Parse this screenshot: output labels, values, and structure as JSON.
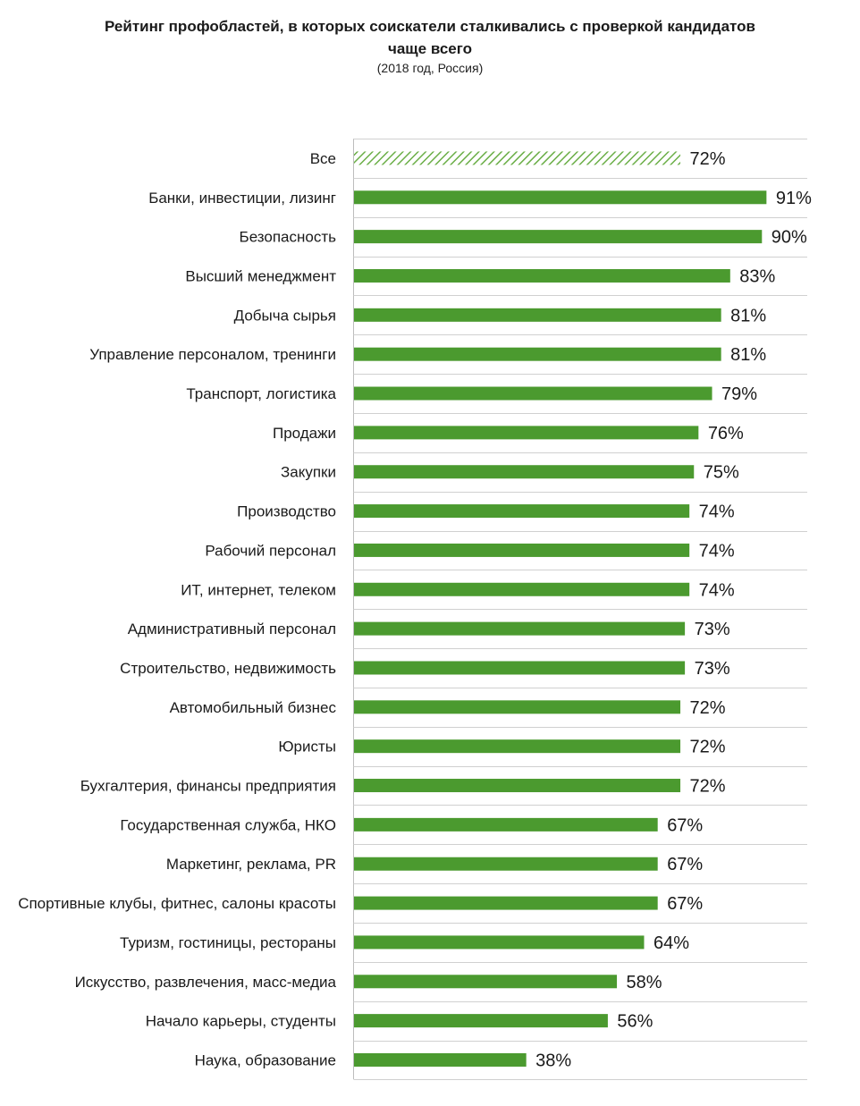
{
  "title_line1": "Рейтинг профобластей, в которых соискатели сталкивались с проверкой кандидатов",
  "title_line2": "чаще всего",
  "subtitle": "(2018 год, Россия)",
  "colors": {
    "bar": "#4b9a2f",
    "hatch": "#6aae46",
    "grid": "#d0d0d0"
  },
  "chart_data": {
    "type": "bar",
    "orientation": "horizontal",
    "title": "Рейтинг профобластей, в которых соискатели сталкивались с проверкой кандидатов чаще всего",
    "subtitle": "(2018 год, Россия)",
    "unit": "%",
    "xlim": [
      0,
      100
    ],
    "grid": true,
    "categories": [
      "Все",
      "Банки, инвестиции, лизинг",
      "Безопасность",
      "Высший менеджмент",
      "Добыча сырья",
      "Управление персоналом, тренинги",
      "Транспорт, логистика",
      "Продажи",
      "Закупки",
      "Производство",
      "Рабочий персонал",
      "ИТ, интернет, телеком",
      "Административный персонал",
      "Строительство, недвижимость",
      "Автомобильный бизнес",
      "Юристы",
      "Бухгалтерия, финансы предприятия",
      "Государственная служба, НКО",
      "Маркетинг, реклама, PR",
      "Спортивные клубы, фитнес, салоны красоты",
      "Туризм, гостиницы, рестораны",
      "Искусство, развлечения, масс-медиа",
      "Начало карьеры, студенты",
      "Наука, образование"
    ],
    "values": [
      72,
      91,
      90,
      83,
      81,
      81,
      79,
      76,
      75,
      74,
      74,
      74,
      73,
      73,
      72,
      72,
      72,
      67,
      67,
      67,
      64,
      58,
      56,
      38
    ],
    "value_labels": [
      "72%",
      "91%",
      "90%",
      "83%",
      "81%",
      "81%",
      "79%",
      "76%",
      "75%",
      "74%",
      "74%",
      "74%",
      "73%",
      "73%",
      "72%",
      "72%",
      "72%",
      "67%",
      "67%",
      "67%",
      "64%",
      "58%",
      "56%",
      "38%"
    ],
    "highlighted_category": "Все"
  }
}
